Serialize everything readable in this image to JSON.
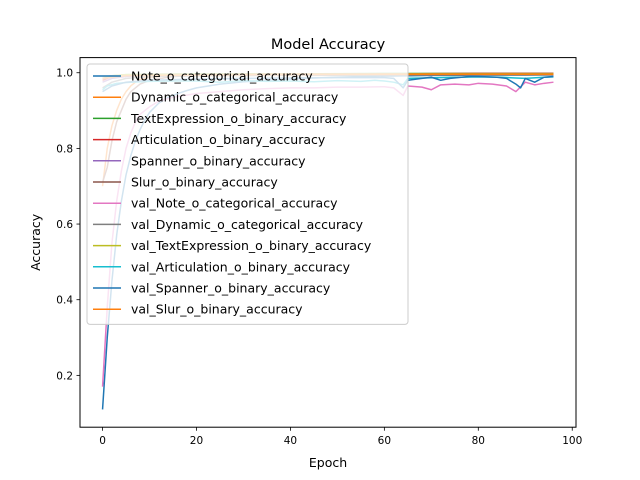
{
  "chart_data": {
    "type": "line",
    "title": "Model Accuracy",
    "xlabel": "Epoch",
    "ylabel": "Accuracy",
    "xlim": [
      -4.8,
      100.8
    ],
    "ylim": [
      0.063,
      1.04
    ],
    "xticks": [
      0,
      20,
      40,
      60,
      80,
      100
    ],
    "yticks": [
      0.2,
      0.4,
      0.6,
      0.8,
      1.0
    ],
    "xtick_labels": [
      "0",
      "20",
      "40",
      "60",
      "80",
      "100"
    ],
    "ytick_labels": [
      "0.2",
      "0.4",
      "0.6",
      "0.8",
      "1.0"
    ],
    "grid": false,
    "legend_position": "upper-left",
    "series": [
      {
        "name": "Note_o_categorical_accuracy",
        "color": "#1f77b4",
        "points": [
          [
            0,
            0.11
          ],
          [
            1,
            0.3
          ],
          [
            2,
            0.45
          ],
          [
            3,
            0.57
          ],
          [
            4,
            0.66
          ],
          [
            5,
            0.73
          ],
          [
            6,
            0.78
          ],
          [
            7,
            0.82
          ],
          [
            8,
            0.85
          ],
          [
            9,
            0.875
          ],
          [
            10,
            0.895
          ],
          [
            12,
            0.92
          ],
          [
            14,
            0.935
          ],
          [
            16,
            0.945
          ],
          [
            18,
            0.953
          ],
          [
            20,
            0.96
          ],
          [
            25,
            0.97
          ],
          [
            30,
            0.976
          ],
          [
            35,
            0.98
          ],
          [
            40,
            0.983
          ],
          [
            45,
            0.986
          ],
          [
            50,
            0.988
          ],
          [
            55,
            0.99
          ],
          [
            60,
            0.991
          ],
          [
            65,
            0.992
          ],
          [
            70,
            0.993
          ],
          [
            75,
            0.993
          ],
          [
            80,
            0.994
          ],
          [
            85,
            0.994
          ],
          [
            90,
            0.994
          ],
          [
            96,
            0.995
          ]
        ]
      },
      {
        "name": "Dynamic_o_categorical_accuracy",
        "color": "#ff7f0e",
        "points": [
          [
            0,
            0.7
          ],
          [
            1,
            0.8
          ],
          [
            2,
            0.86
          ],
          [
            3,
            0.9
          ],
          [
            4,
            0.93
          ],
          [
            5,
            0.95
          ],
          [
            6,
            0.965
          ],
          [
            7,
            0.975
          ],
          [
            8,
            0.982
          ],
          [
            10,
            0.988
          ],
          [
            15,
            0.993
          ],
          [
            20,
            0.995
          ],
          [
            30,
            0.996
          ],
          [
            40,
            0.997
          ],
          [
            60,
            0.997
          ],
          [
            80,
            0.998
          ],
          [
            96,
            0.998
          ]
        ]
      },
      {
        "name": "TextExpression_o_binary_accuracy",
        "color": "#2ca02c",
        "points": [
          [
            0,
            0.985
          ],
          [
            2,
            0.992
          ],
          [
            5,
            0.995
          ],
          [
            10,
            0.996
          ],
          [
            20,
            0.997
          ],
          [
            40,
            0.997
          ],
          [
            60,
            0.998
          ],
          [
            80,
            0.998
          ],
          [
            96,
            0.998
          ]
        ]
      },
      {
        "name": "Articulation_o_binary_accuracy",
        "color": "#d62728",
        "points": [
          [
            0,
            0.98
          ],
          [
            2,
            0.99
          ],
          [
            5,
            0.993
          ],
          [
            10,
            0.995
          ],
          [
            20,
            0.996
          ],
          [
            40,
            0.997
          ],
          [
            60,
            0.997
          ],
          [
            80,
            0.998
          ],
          [
            96,
            0.998
          ]
        ]
      },
      {
        "name": "Spanner_o_binary_accuracy",
        "color": "#9467bd",
        "points": [
          [
            0,
            0.975
          ],
          [
            2,
            0.985
          ],
          [
            5,
            0.99
          ],
          [
            10,
            0.993
          ],
          [
            20,
            0.995
          ],
          [
            40,
            0.996
          ],
          [
            60,
            0.997
          ],
          [
            80,
            0.997
          ],
          [
            96,
            0.997
          ]
        ]
      },
      {
        "name": "Slur_o_binary_accuracy",
        "color": "#8c564b",
        "points": [
          [
            0,
            0.71
          ],
          [
            1,
            0.75
          ],
          [
            2,
            0.82
          ],
          [
            3,
            0.87
          ],
          [
            4,
            0.9
          ],
          [
            5,
            0.93
          ],
          [
            6,
            0.95
          ],
          [
            8,
            0.97
          ],
          [
            10,
            0.98
          ],
          [
            15,
            0.99
          ],
          [
            20,
            0.993
          ],
          [
            30,
            0.995
          ],
          [
            50,
            0.996
          ],
          [
            70,
            0.997
          ],
          [
            96,
            0.997
          ]
        ]
      },
      {
        "name": "val_Note_o_categorical_accuracy",
        "color": "#e377c2",
        "points": [
          [
            0,
            0.17
          ],
          [
            1,
            0.38
          ],
          [
            2,
            0.55
          ],
          [
            3,
            0.66
          ],
          [
            4,
            0.74
          ],
          [
            5,
            0.8
          ],
          [
            6,
            0.84
          ],
          [
            7,
            0.87
          ],
          [
            8,
            0.89
          ],
          [
            10,
            0.91
          ],
          [
            12,
            0.925
          ],
          [
            15,
            0.935
          ],
          [
            20,
            0.945
          ],
          [
            25,
            0.95
          ],
          [
            30,
            0.955
          ],
          [
            35,
            0.958
          ],
          [
            40,
            0.96
          ],
          [
            45,
            0.96
          ],
          [
            50,
            0.962
          ],
          [
            55,
            0.962
          ],
          [
            60,
            0.963
          ],
          [
            62,
            0.96
          ],
          [
            64,
            0.94
          ],
          [
            65,
            0.965
          ],
          [
            68,
            0.962
          ],
          [
            70,
            0.955
          ],
          [
            72,
            0.968
          ],
          [
            75,
            0.97
          ],
          [
            78,
            0.968
          ],
          [
            80,
            0.972
          ],
          [
            83,
            0.97
          ],
          [
            86,
            0.965
          ],
          [
            88,
            0.95
          ],
          [
            90,
            0.975
          ],
          [
            92,
            0.968
          ],
          [
            94,
            0.972
          ],
          [
            96,
            0.975
          ]
        ]
      },
      {
        "name": "val_Dynamic_o_categorical_accuracy",
        "color": "#7f7f7f",
        "points": [
          [
            0,
            0.96
          ],
          [
            2,
            0.975
          ],
          [
            5,
            0.985
          ],
          [
            10,
            0.99
          ],
          [
            20,
            0.992
          ],
          [
            40,
            0.993
          ],
          [
            60,
            0.993
          ],
          [
            80,
            0.994
          ],
          [
            96,
            0.994
          ]
        ]
      },
      {
        "name": "val_TextExpression_o_binary_accuracy",
        "color": "#bcbd22",
        "points": [
          [
            0,
            0.99
          ],
          [
            5,
            0.995
          ],
          [
            20,
            0.996
          ],
          [
            60,
            0.997
          ],
          [
            96,
            0.997
          ]
        ]
      },
      {
        "name": "val_Articulation_o_binary_accuracy",
        "color": "#17becf",
        "points": [
          [
            0,
            0.955
          ],
          [
            1,
            0.965
          ],
          [
            3,
            0.972
          ],
          [
            6,
            0.975
          ],
          [
            10,
            0.977
          ],
          [
            15,
            0.978
          ],
          [
            20,
            0.978
          ],
          [
            25,
            0.975
          ],
          [
            30,
            0.979
          ],
          [
            35,
            0.977
          ],
          [
            40,
            0.978
          ],
          [
            45,
            0.976
          ],
          [
            50,
            0.979
          ],
          [
            55,
            0.977
          ],
          [
            58,
            0.98
          ],
          [
            60,
            0.978
          ],
          [
            62,
            0.975
          ],
          [
            64,
            0.968
          ],
          [
            65,
            0.985
          ],
          [
            68,
            0.986
          ],
          [
            72,
            0.987
          ],
          [
            76,
            0.988
          ],
          [
            80,
            0.989
          ],
          [
            85,
            0.988
          ],
          [
            88,
            0.986
          ],
          [
            90,
            0.985
          ],
          [
            94,
            0.988
          ],
          [
            96,
            0.989
          ]
        ]
      },
      {
        "name": "val_Spanner_o_binary_accuracy",
        "color": "#1f77b4",
        "points": [
          [
            0,
            0.95
          ],
          [
            2,
            0.965
          ],
          [
            5,
            0.975
          ],
          [
            10,
            0.98
          ],
          [
            20,
            0.983
          ],
          [
            30,
            0.985
          ],
          [
            40,
            0.986
          ],
          [
            50,
            0.987
          ],
          [
            60,
            0.987
          ],
          [
            62,
            0.985
          ],
          [
            64,
            0.96
          ],
          [
            65,
            0.98
          ],
          [
            68,
            0.985
          ],
          [
            70,
            0.988
          ],
          [
            72,
            0.98
          ],
          [
            74,
            0.985
          ],
          [
            78,
            0.99
          ],
          [
            80,
            0.99
          ],
          [
            84,
            0.988
          ],
          [
            86,
            0.985
          ],
          [
            88,
            0.97
          ],
          [
            89,
            0.96
          ],
          [
            90,
            0.985
          ],
          [
            92,
            0.975
          ],
          [
            94,
            0.988
          ],
          [
            96,
            0.99
          ]
        ]
      },
      {
        "name": "val_Slur_o_binary_accuracy",
        "color": "#ff7f0e",
        "points": [
          [
            0,
            0.985
          ],
          [
            5,
            0.992
          ],
          [
            20,
            0.994
          ],
          [
            40,
            0.995
          ],
          [
            60,
            0.996
          ],
          [
            80,
            0.996
          ],
          [
            96,
            0.996
          ]
        ]
      }
    ]
  }
}
